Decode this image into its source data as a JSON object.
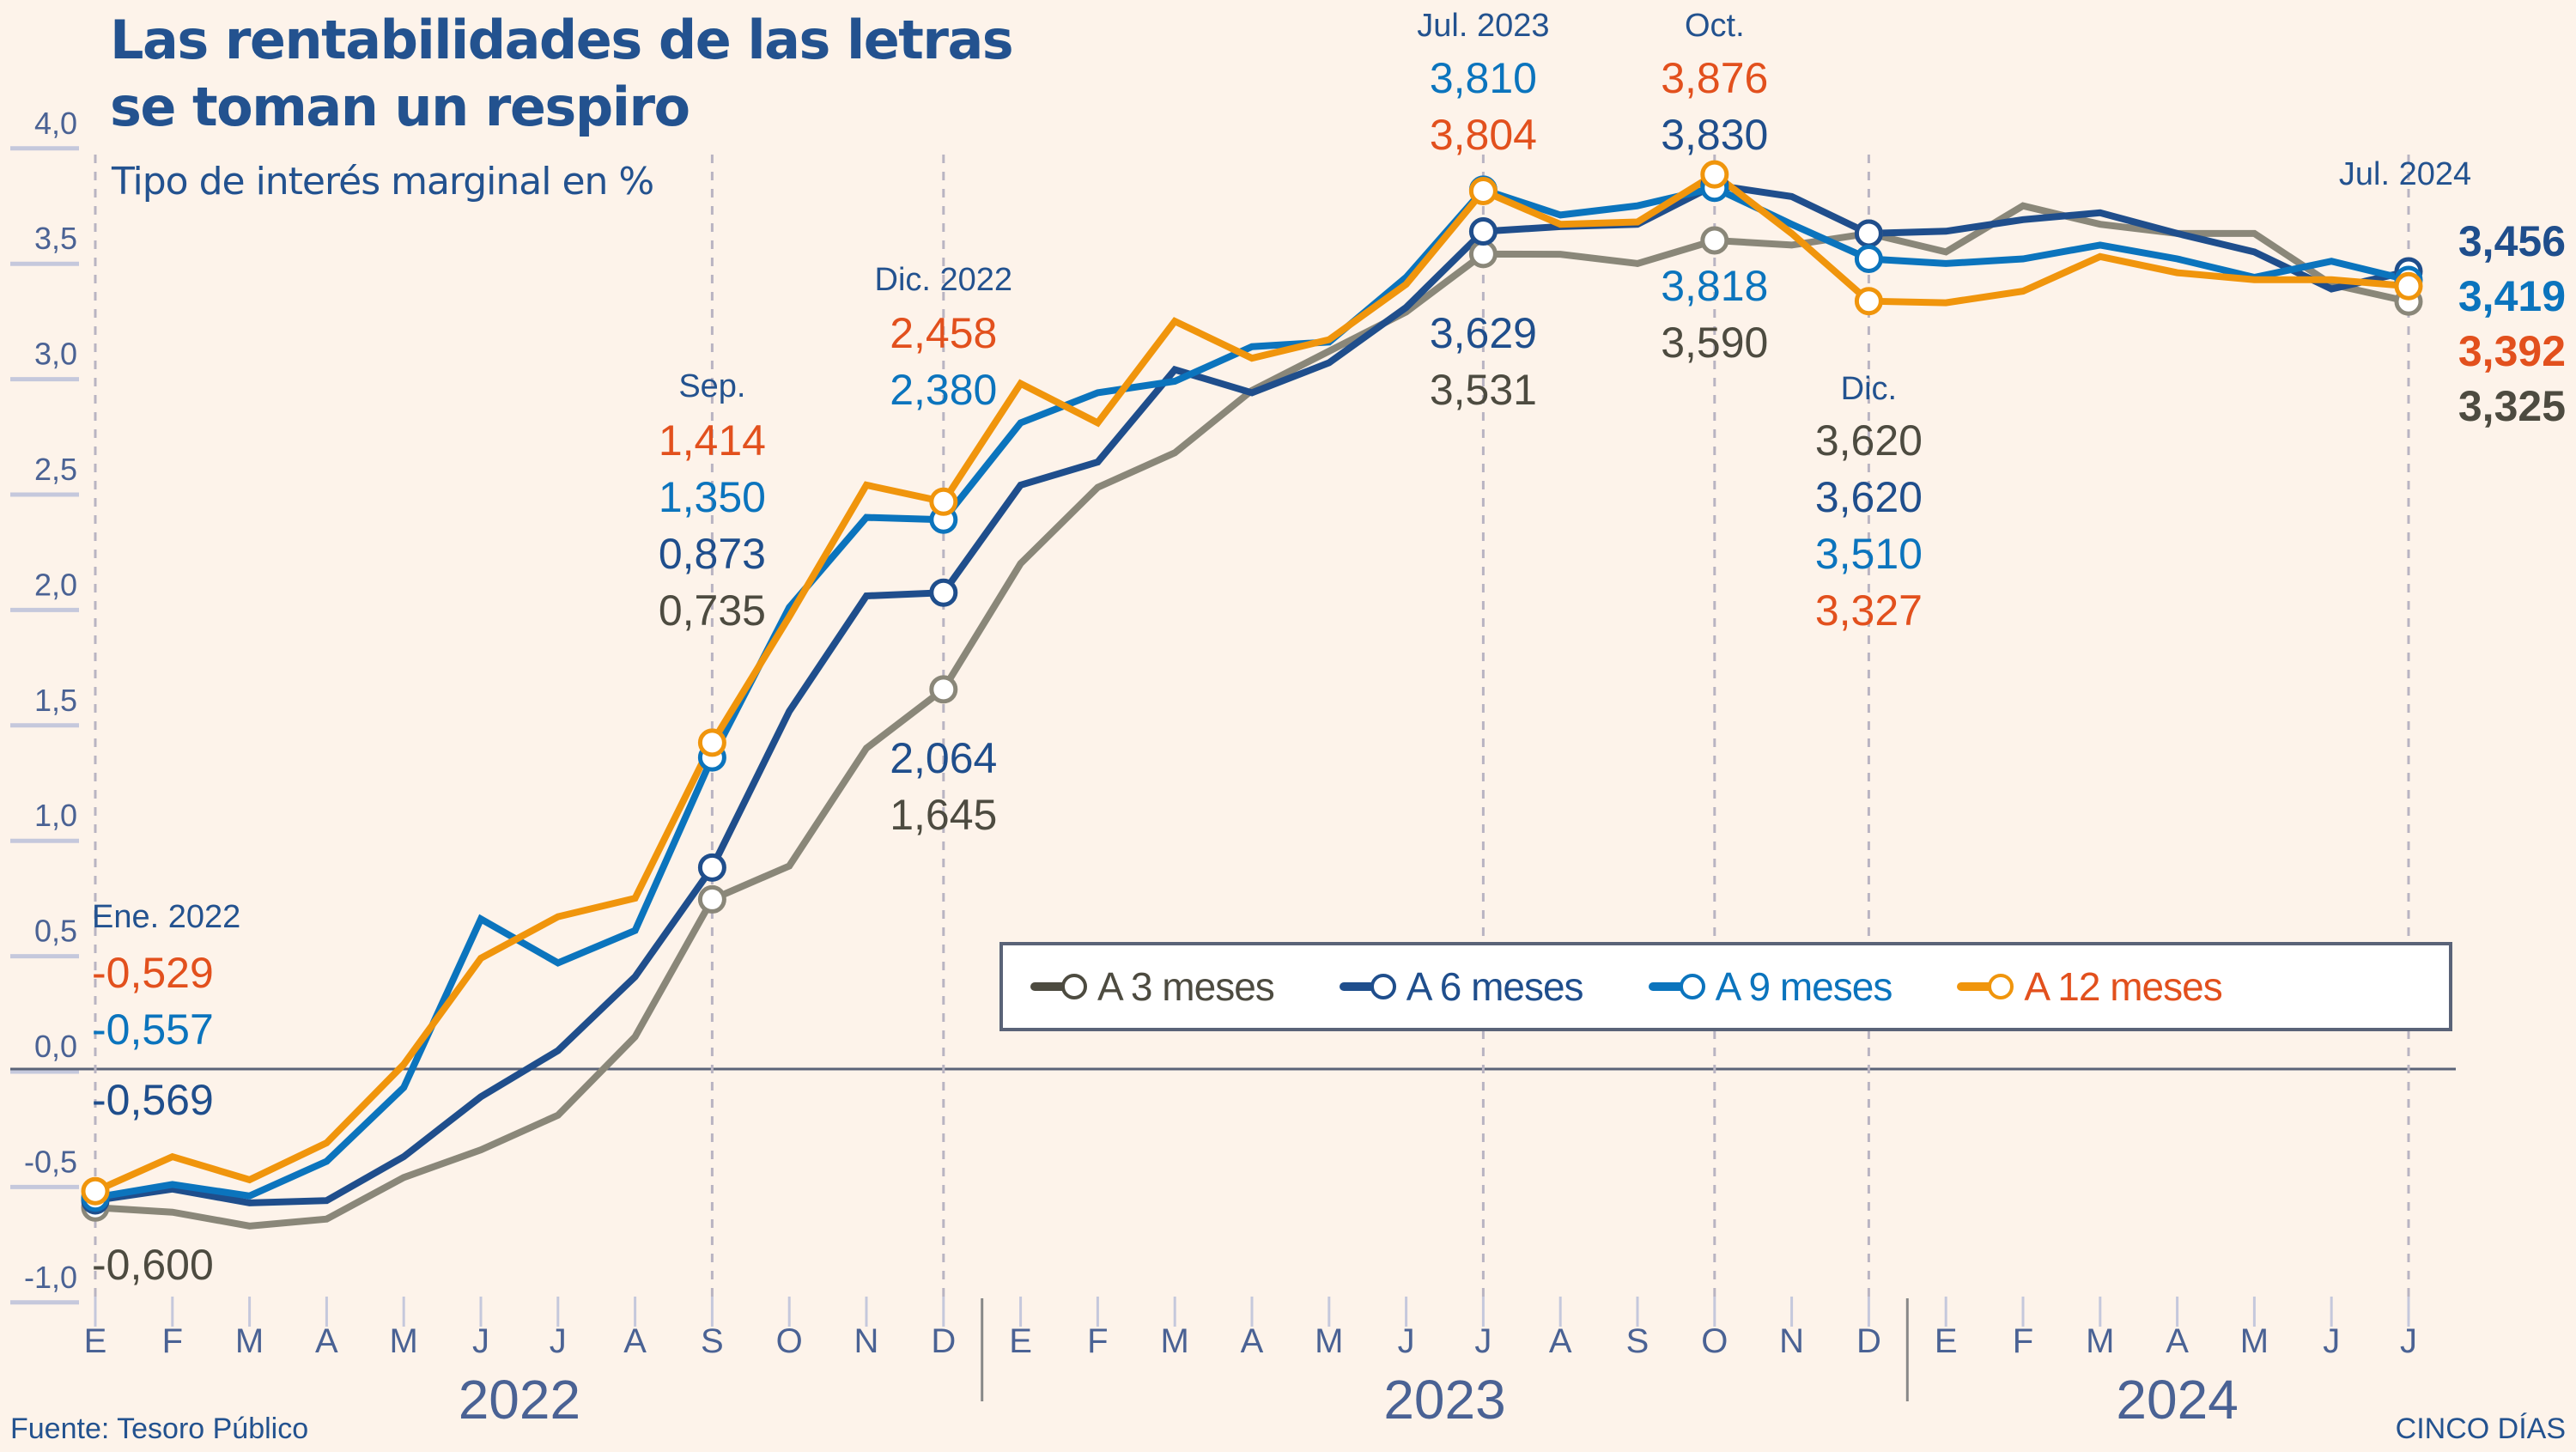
{
  "header": {
    "title_line1": "Las rentabilidades de las letras",
    "title_line2": "se toman un respiro",
    "subtitle": "Tipo de interés marginal en %"
  },
  "footer": {
    "source": "Fuente: Tesoro Público",
    "brand": "CINCO DÍAS"
  },
  "colors": {
    "background": "#fdf3ea",
    "m3": "#8a8779",
    "m6": "#1f4e8c",
    "m9": "#0b74bd",
    "m12": "#f0950c",
    "m3_label": "#4d4b40",
    "m12_label": "#e2501d",
    "axis_text": "#4a6294"
  },
  "chart_data": {
    "type": "line",
    "title": "Las rentabilidades de las letras se toman un respiro",
    "subtitle": "Tipo de interés marginal en %",
    "xlabel": "",
    "ylabel": "Tipo de interés marginal en %",
    "ylim": [
      -1.0,
      4.0
    ],
    "yticks": [
      -1.0,
      -0.5,
      0.0,
      0.5,
      1.0,
      1.5,
      2.0,
      2.5,
      3.0,
      3.5,
      4.0
    ],
    "ytick_labels": [
      "-1,0",
      "-0,5",
      "0,0",
      "0,5",
      "1,0",
      "1,5",
      "2,0",
      "2,5",
      "3,0",
      "3,5",
      "4,0"
    ],
    "x_month_labels": [
      "E",
      "F",
      "M",
      "A",
      "M",
      "J",
      "J",
      "A",
      "S",
      "O",
      "N",
      "D",
      "E",
      "F",
      "M",
      "A",
      "M",
      "J",
      "J",
      "A",
      "S",
      "O",
      "N",
      "D",
      "E",
      "F",
      "M",
      "A",
      "M",
      "J",
      "J"
    ],
    "years": [
      {
        "label": "2022",
        "start": 0,
        "end": 11
      },
      {
        "label": "2023",
        "start": 12,
        "end": 23
      },
      {
        "label": "2024",
        "start": 24,
        "end": 30
      }
    ],
    "legend_position": "bottom-right",
    "grid": false,
    "series": [
      {
        "key": "m3",
        "name": "A 3 meses",
        "values": [
          -0.6,
          -0.62,
          -0.68,
          -0.65,
          -0.47,
          -0.35,
          -0.2,
          0.14,
          0.735,
          0.88,
          1.39,
          1.645,
          2.19,
          2.52,
          2.67,
          2.94,
          3.11,
          3.28,
          3.531,
          3.53,
          3.49,
          3.59,
          3.57,
          3.62,
          3.54,
          3.74,
          3.66,
          3.62,
          3.62,
          3.4,
          3.325
        ]
      },
      {
        "key": "m6",
        "name": "A 6 meses",
        "values": [
          -0.569,
          -0.52,
          -0.58,
          -0.57,
          -0.38,
          -0.12,
          0.08,
          0.4,
          0.873,
          1.55,
          2.05,
          2.064,
          2.53,
          2.63,
          3.03,
          2.93,
          3.06,
          3.3,
          3.629,
          3.65,
          3.66,
          3.83,
          3.78,
          3.62,
          3.63,
          3.68,
          3.71,
          3.62,
          3.54,
          3.38,
          3.456
        ]
      },
      {
        "key": "m9",
        "name": "A 9 meses",
        "values": [
          -0.557,
          -0.5,
          -0.55,
          -0.4,
          -0.08,
          0.65,
          0.46,
          0.6,
          1.35,
          2.0,
          2.39,
          2.38,
          2.8,
          2.93,
          2.98,
          3.13,
          3.15,
          3.43,
          3.81,
          3.7,
          3.74,
          3.818,
          3.66,
          3.51,
          3.49,
          3.51,
          3.57,
          3.51,
          3.43,
          3.5,
          3.419
        ]
      },
      {
        "key": "m12",
        "name": "A 12 meses",
        "values": [
          -0.529,
          -0.38,
          -0.48,
          -0.32,
          0.02,
          0.48,
          0.66,
          0.74,
          1.414,
          1.96,
          2.53,
          2.458,
          2.97,
          2.8,
          3.24,
          3.08,
          3.16,
          3.4,
          3.804,
          3.66,
          3.67,
          3.876,
          3.62,
          3.327,
          3.32,
          3.37,
          3.52,
          3.45,
          3.42,
          3.42,
          3.392
        ]
      }
    ],
    "annotations": [
      {
        "index": 0,
        "title": "Ene. 2022",
        "above": [
          {
            "key": "m12",
            "text": "-0,529"
          },
          {
            "key": "m9",
            "text": "-0,557"
          },
          {
            "key": "m6",
            "text": "-0,569"
          }
        ],
        "below": [
          {
            "key": "m3",
            "text": "-0,600"
          }
        ]
      },
      {
        "index": 8,
        "title": "Sep.",
        "above": [
          {
            "key": "m12",
            "text": "1,414"
          },
          {
            "key": "m9",
            "text": "1,350"
          },
          {
            "key": "m6",
            "text": "0,873"
          },
          {
            "key": "m3",
            "text": "0,735"
          }
        ],
        "below": []
      },
      {
        "index": 11,
        "title": "Dic. 2022",
        "above": [
          {
            "key": "m12",
            "text": "2,458"
          },
          {
            "key": "m9",
            "text": "2,380"
          }
        ],
        "below": [
          {
            "key": "m6",
            "text": "2,064"
          },
          {
            "key": "m3",
            "text": "1,645"
          }
        ]
      },
      {
        "index": 18,
        "title": "Jul. 2023",
        "above": [
          {
            "key": "m9",
            "text": "3,810"
          },
          {
            "key": "m12",
            "text": "3,804"
          }
        ],
        "below": [
          {
            "key": "m6",
            "text": "3,629"
          },
          {
            "key": "m3",
            "text": "3,531"
          }
        ]
      },
      {
        "index": 21,
        "title": "Oct.",
        "above": [
          {
            "key": "m12",
            "text": "3,876"
          },
          {
            "key": "m6",
            "text": "3,830"
          }
        ],
        "below": [
          {
            "key": "m9",
            "text": "3,818"
          },
          {
            "key": "m3",
            "text": "3,590"
          }
        ]
      },
      {
        "index": 23,
        "title": "Dic.",
        "above": [],
        "below": [
          {
            "key": "m3",
            "text": "3,620"
          },
          {
            "key": "m6",
            "text": "3,620"
          },
          {
            "key": "m9",
            "text": "3,510"
          },
          {
            "key": "m12",
            "text": "3,327"
          }
        ]
      },
      {
        "index": 30,
        "title": "Jul. 2024",
        "side": [
          {
            "key": "m6",
            "text": "3,456"
          },
          {
            "key": "m9",
            "text": "3,419"
          },
          {
            "key": "m12",
            "text": "3,392"
          },
          {
            "key": "m3",
            "text": "3,325"
          }
        ]
      }
    ]
  }
}
